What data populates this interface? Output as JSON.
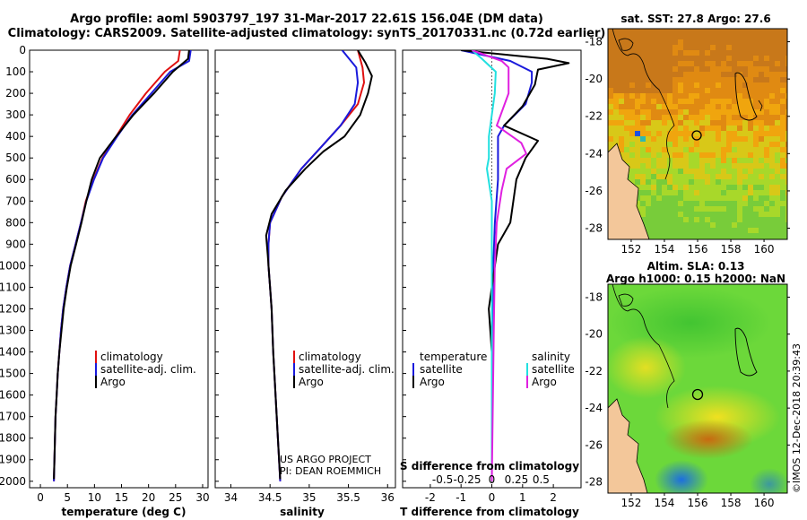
{
  "header": {
    "line1": "Argo profile: aoml 5903797_197 31-Mar-2017 22.61S 156.04E (DM data)",
    "line2": "Climatology: CARS2009. Satellite-adjusted climatology: synTS_20170331.nc (0.72d earlier)"
  },
  "colors": {
    "climatology": "#e01010",
    "satellite": "#1a1adc",
    "argo": "#000000",
    "sat_salinity": "#22e0e0",
    "clim_salinity": "#e020e0"
  },
  "depth_ticks": [
    "0",
    "100",
    "200",
    "300",
    "400",
    "500",
    "600",
    "700",
    "800",
    "900",
    "1000",
    "1100",
    "1200",
    "1300",
    "1400",
    "1500",
    "1600",
    "1700",
    "1800",
    "1900",
    "2000"
  ],
  "chart_data": [
    {
      "type": "line",
      "name": "temperature",
      "xlabel": "temperature (deg C)",
      "ylabel": "depth",
      "xlim": [
        -2,
        31
      ],
      "ylim": [
        2030,
        0
      ],
      "xticks": [
        "0",
        "5",
        "10",
        "15",
        "20",
        "25",
        "30"
      ],
      "legend": [
        "climatology",
        "satellite-adj. clim.",
        "Argo"
      ],
      "series": [
        {
          "name": "climatology",
          "color": "#e01010",
          "points": [
            [
              25.8,
              0
            ],
            [
              25.5,
              50
            ],
            [
              23,
              100
            ],
            [
              19.5,
              200
            ],
            [
              16.5,
              300
            ],
            [
              14,
              400
            ],
            [
              11.5,
              500
            ],
            [
              9.8,
              600
            ],
            [
              8.4,
              700
            ],
            [
              7.5,
              800
            ],
            [
              6.5,
              900
            ],
            [
              5.5,
              1000
            ],
            [
              4.8,
              1100
            ],
            [
              4.2,
              1200
            ],
            [
              3.8,
              1300
            ],
            [
              3.5,
              1400
            ],
            [
              3.2,
              1500
            ],
            [
              3,
              1600
            ],
            [
              2.8,
              1700
            ],
            [
              2.7,
              1800
            ],
            [
              2.6,
              1900
            ],
            [
              2.5,
              2000
            ]
          ]
        },
        {
          "name": "satellite-adj. clim.",
          "color": "#1a1adc",
          "points": [
            [
              27.8,
              0
            ],
            [
              27.5,
              50
            ],
            [
              24,
              100
            ],
            [
              20.5,
              200
            ],
            [
              17,
              300
            ],
            [
              14.2,
              400
            ],
            [
              11.6,
              500
            ],
            [
              9.9,
              600
            ],
            [
              8.5,
              700
            ],
            [
              7.5,
              800
            ],
            [
              6.5,
              900
            ],
            [
              5.5,
              1000
            ],
            [
              4.8,
              1100
            ],
            [
              4.2,
              1200
            ],
            [
              3.8,
              1300
            ],
            [
              3.5,
              1400
            ],
            [
              3.2,
              1500
            ],
            [
              3,
              1600
            ],
            [
              2.8,
              1700
            ],
            [
              2.7,
              1800
            ],
            [
              2.6,
              1900
            ],
            [
              2.5,
              2000
            ]
          ]
        },
        {
          "name": "Argo",
          "color": "#000000",
          "points": [
            [
              27.5,
              0
            ],
            [
              27.3,
              40
            ],
            [
              24.5,
              100
            ],
            [
              21,
              200
            ],
            [
              17.2,
              300
            ],
            [
              14,
              400
            ],
            [
              11,
              500
            ],
            [
              9.5,
              600
            ],
            [
              8.5,
              700
            ],
            [
              7.6,
              800
            ],
            [
              6.6,
              900
            ],
            [
              5.6,
              1000
            ],
            [
              4.9,
              1100
            ],
            [
              4.3,
              1200
            ],
            [
              3.9,
              1300
            ],
            [
              3.5,
              1400
            ],
            [
              3.2,
              1500
            ],
            [
              3,
              1600
            ],
            [
              2.8,
              1700
            ],
            [
              2.7,
              1800
            ],
            [
              2.6,
              1900
            ],
            [
              2.5,
              1990
            ]
          ]
        }
      ]
    },
    {
      "type": "line",
      "name": "salinity",
      "xlabel": "salinity",
      "ylabel": "depth",
      "xlim": [
        33.8,
        36.1
      ],
      "ylim": [
        2030,
        0
      ],
      "xticks": [
        "34",
        "34.5",
        "35",
        "35.5",
        "36"
      ],
      "legend": [
        "climatology",
        "satellite-adj. clim.",
        "Argo"
      ],
      "annotation": [
        "US ARGO PROJECT",
        "PI: DEAN ROEMMICH"
      ],
      "series": [
        {
          "name": "climatology",
          "color": "#e01010",
          "points": [
            [
              35.62,
              0
            ],
            [
              35.68,
              80
            ],
            [
              35.7,
              150
            ],
            [
              35.62,
              250
            ],
            [
              35.4,
              350
            ],
            [
              35.15,
              450
            ],
            [
              34.9,
              550
            ],
            [
              34.65,
              680
            ],
            [
              34.5,
              800
            ],
            [
              34.48,
              900
            ],
            [
              34.48,
              1000
            ],
            [
              34.5,
              1100
            ],
            [
              34.52,
              1200
            ],
            [
              34.54,
              1400
            ],
            [
              34.57,
              1600
            ],
            [
              34.6,
              1800
            ],
            [
              34.63,
              2000
            ]
          ]
        },
        {
          "name": "satellite-adj. clim.",
          "color": "#1a1adc",
          "points": [
            [
              35.42,
              0
            ],
            [
              35.6,
              80
            ],
            [
              35.62,
              150
            ],
            [
              35.58,
              250
            ],
            [
              35.4,
              350
            ],
            [
              35.15,
              450
            ],
            [
              34.9,
              550
            ],
            [
              34.65,
              680
            ],
            [
              34.5,
              800
            ],
            [
              34.48,
              900
            ],
            [
              34.48,
              1000
            ],
            [
              34.5,
              1100
            ],
            [
              34.52,
              1200
            ],
            [
              34.54,
              1400
            ],
            [
              34.57,
              1600
            ],
            [
              34.6,
              1800
            ],
            [
              34.63,
              2000
            ]
          ]
        },
        {
          "name": "Argo",
          "color": "#000000",
          "points": [
            [
              35.62,
              0
            ],
            [
              35.72,
              60
            ],
            [
              35.8,
              120
            ],
            [
              35.75,
              200
            ],
            [
              35.65,
              300
            ],
            [
              35.45,
              400
            ],
            [
              35.18,
              470
            ],
            [
              34.95,
              550
            ],
            [
              34.7,
              650
            ],
            [
              34.52,
              760
            ],
            [
              34.45,
              860
            ],
            [
              34.47,
              950
            ],
            [
              34.5,
              1100
            ],
            [
              34.52,
              1200
            ],
            [
              34.54,
              1400
            ],
            [
              34.57,
              1600
            ],
            [
              34.6,
              1800
            ],
            [
              34.63,
              1990
            ]
          ]
        }
      ]
    },
    {
      "type": "line",
      "name": "difference",
      "xlabel": "T difference from climatology",
      "xlabel_top": "S difference from climatology",
      "ylabel": "depth",
      "xlim": [
        -2.9,
        2.9
      ],
      "ylim": [
        2030,
        0
      ],
      "xticks": [
        "-2",
        "-1",
        "0",
        "1",
        "2"
      ],
      "xticks_top": [
        "-0.5",
        "-0.25",
        "0",
        "0.25",
        "0.5"
      ],
      "legend_left_title": "temperature",
      "legend_left": [
        "satellite",
        "Argo"
      ],
      "legend_right_title": "salinity",
      "legend_right": [
        "satellite",
        "Argo"
      ],
      "series": [
        {
          "name": "temperature satellite",
          "color": "#1a1adc",
          "points": [
            [
              -1,
              0
            ],
            [
              0.6,
              50
            ],
            [
              1.3,
              100
            ],
            [
              1.3,
              150
            ],
            [
              1.1,
              250
            ],
            [
              0.4,
              350
            ],
            [
              0.2,
              400
            ],
            [
              0.2,
              600
            ],
            [
              0.1,
              800
            ],
            [
              0.05,
              1000
            ],
            [
              0,
              1500
            ],
            [
              0,
              2000
            ]
          ]
        },
        {
          "name": "temperature Argo",
          "color": "#000000",
          "points": [
            [
              -1,
              0
            ],
            [
              1.8,
              40
            ],
            [
              2.5,
              60
            ],
            [
              1.5,
              90
            ],
            [
              1.4,
              160
            ],
            [
              1,
              260
            ],
            [
              0.4,
              350
            ],
            [
              1.5,
              420
            ],
            [
              1.1,
              500
            ],
            [
              0.8,
              600
            ],
            [
              0.7,
              700
            ],
            [
              0.6,
              800
            ],
            [
              0.2,
              900
            ],
            [
              0.1,
              1000
            ],
            [
              -0.1,
              1200
            ],
            [
              0,
              1400
            ],
            [
              0,
              2000
            ]
          ]
        },
        {
          "name": "salinity satellite",
          "color": "#22e0e0",
          "points": [
            [
              -0.2,
              0
            ],
            [
              -0.1,
              40
            ],
            [
              0.04,
              100
            ],
            [
              0.03,
              200
            ],
            [
              -0.03,
              400
            ],
            [
              -0.03,
              500
            ],
            [
              -0.05,
              550
            ],
            [
              0,
              700
            ],
            [
              0,
              1000
            ],
            [
              0,
              1500
            ],
            [
              0,
              2000
            ]
          ]
        },
        {
          "name": "salinity Argo",
          "color": "#e020e0",
          "points": [
            [
              -0.2,
              0
            ],
            [
              0.1,
              50
            ],
            [
              0.17,
              80
            ],
            [
              0.17,
              200
            ],
            [
              0.05,
              350
            ],
            [
              0.3,
              430
            ],
            [
              0.35,
              480
            ],
            [
              0.15,
              550
            ],
            [
              0.1,
              650
            ],
            [
              0.05,
              800
            ],
            [
              0.03,
              1000
            ],
            [
              0.02,
              1300
            ],
            [
              0,
              2000
            ]
          ]
        }
      ]
    }
  ],
  "maps": {
    "sst_title": "sat. SST: 27.8 Argo: 27.6",
    "sla_title_line1": "Altim. SLA: 0.13",
    "sla_title_line2": "Argo h1000: 0.15 h2000: NaN",
    "lat_ticks": [
      "-18",
      "-20",
      "-22",
      "-24",
      "-26",
      "-28"
    ],
    "lon_ticks": [
      "152",
      "154",
      "156",
      "158",
      "160"
    ],
    "credit": "©IMOS 12-Dec-2018 20:39:43"
  }
}
